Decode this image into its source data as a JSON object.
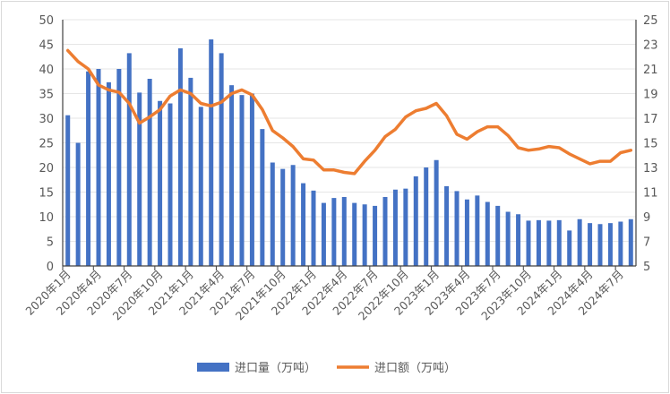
{
  "chart_data": {
    "type": "bar+line",
    "title": "",
    "categories": [
      "2020年1月",
      "2020年2月",
      "2020年3月",
      "2020年4月",
      "2020年5月",
      "2020年6月",
      "2020年7月",
      "2020年8月",
      "2020年9月",
      "2020年10月",
      "2020年11月",
      "2020年12月",
      "2021年1月",
      "2021年2月",
      "2021年3月",
      "2021年4月",
      "2021年5月",
      "2021年6月",
      "2021年7月",
      "2021年8月",
      "2021年9月",
      "2021年10月",
      "2021年11月",
      "2021年12月",
      "2022年1月",
      "2022年2月",
      "2022年3月",
      "2022年4月",
      "2022年5月",
      "2022年6月",
      "2022年7月",
      "2022年8月",
      "2022年9月",
      "2022年10月",
      "2022年11月",
      "2022年12月",
      "2023年1月",
      "2023年2月",
      "2023年3月",
      "2023年4月",
      "2023年5月",
      "2023年6月",
      "2023年7月",
      "2023年8月",
      "2023年9月",
      "2023年10月",
      "2023年11月",
      "2023年12月",
      "2024年1月",
      "2024年2月",
      "2024年3月",
      "2024年4月",
      "2024年5月",
      "2024年6月",
      "2024年7月",
      "2024年8月"
    ],
    "tick_labels": [
      "2020年1月",
      "2020年4月",
      "2020年7月",
      "2020年10月",
      "2021年1月",
      "2021年4月",
      "2021年7月",
      "2021年10月",
      "2022年1月",
      "2022年4月",
      "2022年7月",
      "2022年10月",
      "2023年1月",
      "2023年4月",
      "2023年7月",
      "2023年10月",
      "2024年1月",
      "2024年4月",
      "2024年7月"
    ],
    "series": [
      {
        "name": "进口量（万吨）",
        "type": "bar",
        "axis": "left",
        "color": "#4472C4",
        "values": [
          30.6,
          25,
          39.5,
          40,
          37.3,
          40,
          43.2,
          35.2,
          38,
          33.5,
          33,
          44.2,
          38.2,
          32.3,
          46,
          43.2,
          36.7,
          34.7,
          35,
          27.8,
          21,
          19.7,
          20.5,
          16.8,
          15.3,
          12.8,
          13.8,
          14,
          12.8,
          12.5,
          12.2,
          14,
          15.5,
          15.7,
          18.2,
          20,
          21.5,
          16.2,
          15.2,
          13.5,
          14.3,
          13,
          12.2,
          11,
          10.5,
          9.2,
          9.3,
          9.2,
          9.3,
          7.2,
          9.5,
          8.7,
          8.5,
          8.7,
          9,
          9.5
        ]
      },
      {
        "name": "进口额（万吨）",
        "type": "line",
        "axis": "right",
        "color": "#ED7D31",
        "values": [
          22.5,
          21.6,
          21,
          19.7,
          19.3,
          19.1,
          18.2,
          16.6,
          17.1,
          17.7,
          18.8,
          19.3,
          19,
          18.2,
          18,
          18.3,
          19,
          19.3,
          18.9,
          17.7,
          16,
          15.4,
          14.7,
          13.7,
          13.6,
          12.8,
          12.8,
          12.6,
          12.5,
          13.5,
          14.4,
          15.5,
          16.1,
          17.1,
          17.6,
          17.8,
          18.2,
          17.2,
          15.7,
          15.3,
          15.9,
          16.3,
          16.3,
          15.6,
          14.6,
          14.4,
          14.5,
          14.7,
          14.6,
          14.1,
          13.7,
          13.3,
          13.5,
          13.5,
          14.2,
          14.4
        ]
      }
    ],
    "y_left": {
      "range": [
        0,
        50
      ],
      "ticks": [
        "0",
        "5",
        "10",
        "15",
        "20",
        "25",
        "30",
        "35",
        "40",
        "45",
        "50"
      ]
    },
    "y_right": {
      "range": [
        5,
        25
      ],
      "ticks": [
        "5",
        "7",
        "9",
        "11",
        "13",
        "15",
        "17",
        "19",
        "21",
        "23",
        "25"
      ]
    },
    "grid": true,
    "legend_position": "bottom"
  }
}
